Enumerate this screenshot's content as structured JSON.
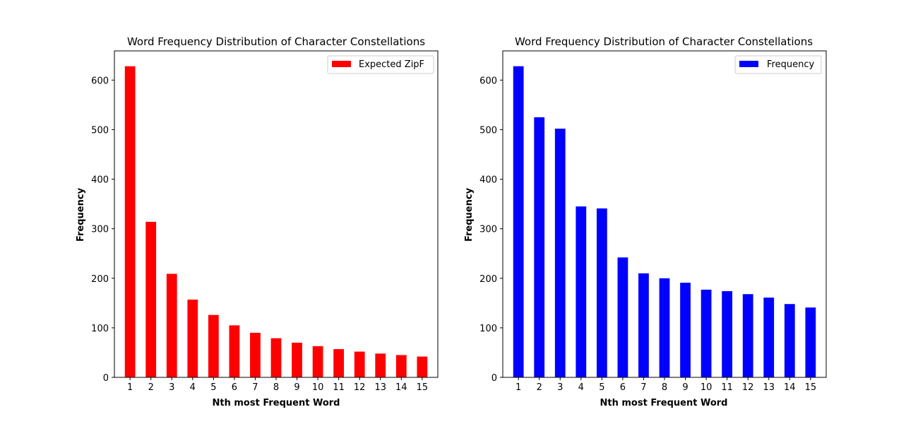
{
  "chart_data": [
    {
      "type": "bar",
      "title": "Word Frequency Distribution of Character Constellations",
      "xlabel": "Nth most Frequent Word",
      "ylabel": "Frequency",
      "categories": [
        "1",
        "2",
        "3",
        "4",
        "5",
        "6",
        "7",
        "8",
        "9",
        "10",
        "11",
        "12",
        "13",
        "14",
        "15"
      ],
      "series": [
        {
          "name": "Expected ZipF",
          "color": "#ff0000",
          "values": [
            628,
            314,
            209,
            157,
            126,
            105,
            90,
            79,
            70,
            63,
            57,
            52,
            48,
            45,
            42
          ]
        }
      ],
      "ylim": [
        0,
        659
      ],
      "yticks": [
        0,
        100,
        200,
        300,
        400,
        500,
        600
      ],
      "legend": "top-right",
      "grid": false
    },
    {
      "type": "bar",
      "title": "Word Frequency Distribution of Character Constellations",
      "xlabel": "Nth most Frequent Word",
      "ylabel": "Frequency",
      "categories": [
        "1",
        "2",
        "3",
        "4",
        "5",
        "6",
        "7",
        "8",
        "9",
        "10",
        "11",
        "12",
        "13",
        "14",
        "15"
      ],
      "series": [
        {
          "name": "Frequency",
          "color": "#0000ff",
          "values": [
            628,
            525,
            502,
            345,
            341,
            242,
            210,
            200,
            191,
            177,
            174,
            168,
            161,
            148,
            141
          ]
        }
      ],
      "ylim": [
        0,
        659
      ],
      "yticks": [
        0,
        100,
        200,
        300,
        400,
        500,
        600
      ],
      "legend": "top-right",
      "grid": false
    }
  ]
}
